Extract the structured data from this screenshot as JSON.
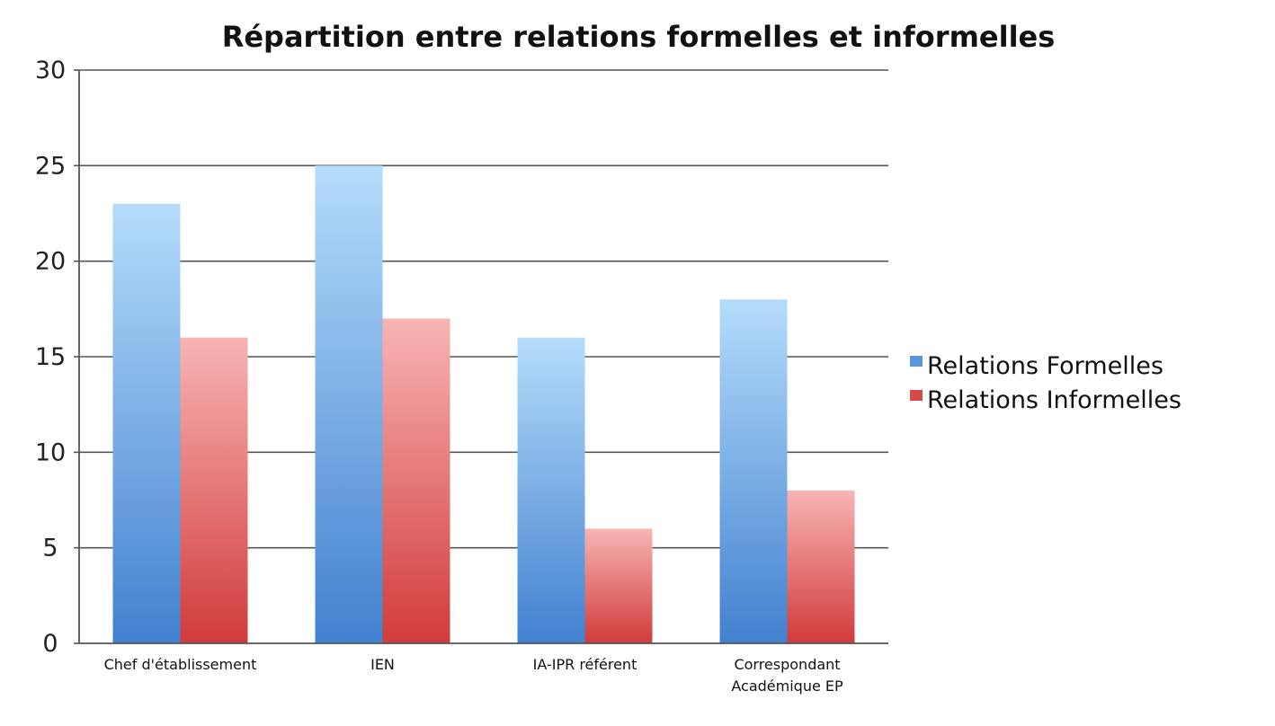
{
  "chart_data": {
    "type": "bar",
    "title": "Répartition entre relations formelles et informelles",
    "xlabel": "",
    "ylabel": "",
    "ylim": [
      0,
      30
    ],
    "yticks": [
      "0",
      "5",
      "10",
      "15",
      "20",
      "25",
      "30"
    ],
    "grid": true,
    "legend_position": "right",
    "categories": [
      [
        "Chef d'établissement"
      ],
      [
        "IEN"
      ],
      [
        "IA-IPR référent"
      ],
      [
        "Correspondant",
        "Académique EP"
      ]
    ],
    "series": [
      {
        "name": "Relations Formelles",
        "values": [
          23,
          25,
          16,
          18
        ],
        "color": "#4a86d4"
      },
      {
        "name": "Relations Informelles",
        "values": [
          16,
          17,
          6,
          8
        ],
        "color": "#d44444"
      }
    ]
  }
}
